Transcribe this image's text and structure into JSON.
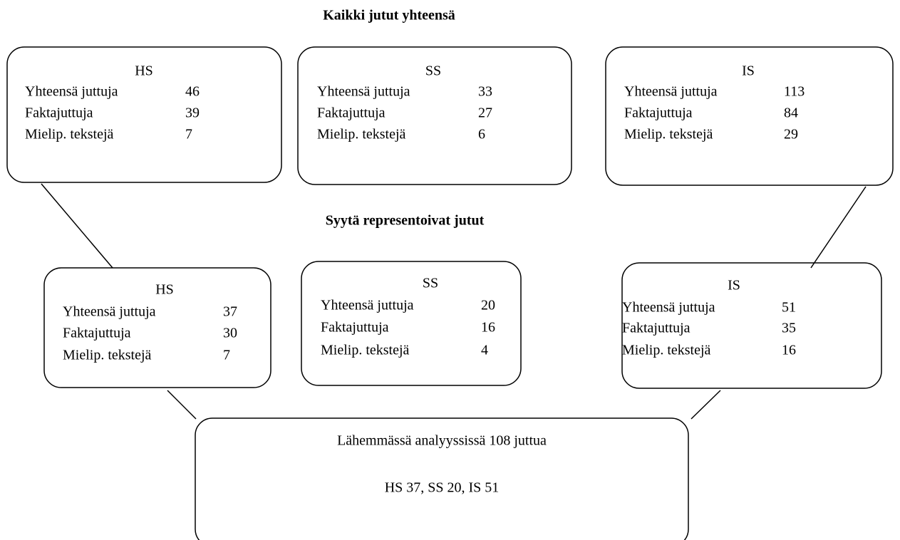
{
  "heading_top": "Kaikki jutut yhteensä",
  "heading_middle": "Syytä representoivat jutut",
  "top_boxes": [
    {
      "title": "HS",
      "rows": [
        {
          "label": "Yhteensä juttuja",
          "value": 46
        },
        {
          "label": "Faktajuttuja",
          "value": 39
        },
        {
          "label": "Mielip. tekstejä",
          "value": 7
        }
      ]
    },
    {
      "title": "SS",
      "rows": [
        {
          "label": "Yhteensä juttuja",
          "value": 33
        },
        {
          "label": "Faktajuttuja",
          "value": 27
        },
        {
          "label": "Mielip. tekstejä",
          "value": 6
        }
      ]
    },
    {
      "title": "IS",
      "rows": [
        {
          "label": "Yhteensä juttuja",
          "value": 113
        },
        {
          "label": "Faktajuttuja",
          "value": 84
        },
        {
          "label": "Mielip. tekstejä",
          "value": 29
        }
      ]
    }
  ],
  "middle_boxes": [
    {
      "title": "HS",
      "rows": [
        {
          "label": "Yhteensä juttuja",
          "value": 37
        },
        {
          "label": "Faktajuttuja",
          "value": 30
        },
        {
          "label": "Mielip. tekstejä",
          "value": 7
        }
      ]
    },
    {
      "title": "SS",
      "rows": [
        {
          "label": "Yhteensä juttuja",
          "value": 20
        },
        {
          "label": "Faktajuttuja",
          "value": 16
        },
        {
          "label": "Mielip. tekstejä",
          "value": 4
        }
      ]
    },
    {
      "title": "IS",
      "rows": [
        {
          "label": "Yhteensä juttuja",
          "value": 51
        },
        {
          "label": "Faktajuttuja",
          "value": 35
        },
        {
          "label": "Mielip. tekstejä",
          "value": 16
        }
      ]
    }
  ],
  "bottom_box": {
    "lines": [
      "Lähemmässä analyyssissä 108 juttua",
      "HS 37, SS 20, IS 51"
    ]
  }
}
